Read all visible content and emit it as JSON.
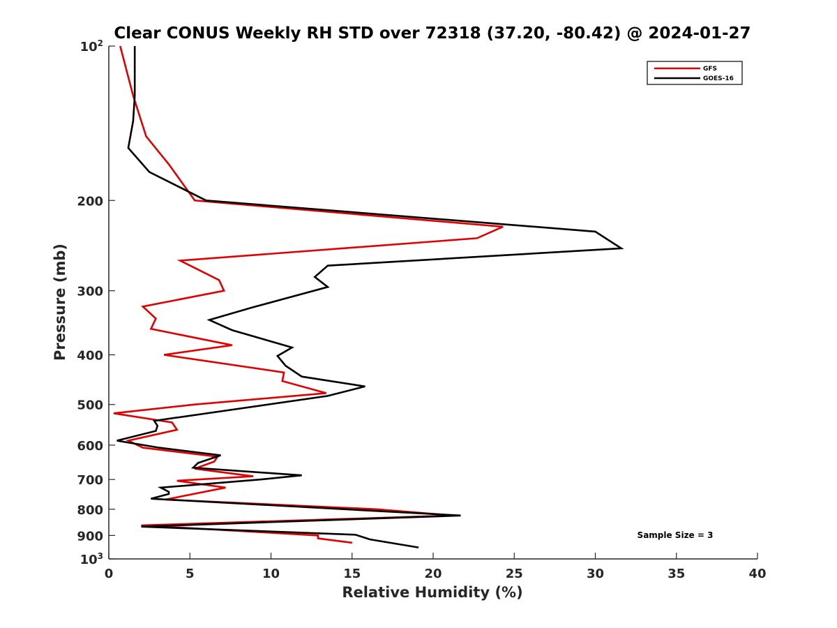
{
  "chart_data": {
    "type": "line",
    "title": "Clear CONUS Weekly RH STD over 72318 (37.20, -80.42) @ 2024-01-27",
    "xlabel": "Relative Humidity (%)",
    "ylabel": "Pressure (mb)",
    "xlim": [
      0,
      40
    ],
    "ylim": [
      100,
      1000
    ],
    "y_scale": "log",
    "y_reversed": true,
    "x_ticks": [
      "0",
      "5",
      "10",
      "15",
      "20",
      "25",
      "30",
      "35",
      "40"
    ],
    "y_ticks": [
      {
        "value": 100,
        "base": "10",
        "exp": "2"
      },
      {
        "value": 200,
        "base": "200",
        "exp": ""
      },
      {
        "value": 300,
        "base": "300",
        "exp": ""
      },
      {
        "value": 400,
        "base": "400",
        "exp": ""
      },
      {
        "value": 500,
        "base": "500",
        "exp": ""
      },
      {
        "value": 600,
        "base": "600",
        "exp": ""
      },
      {
        "value": 700,
        "base": "700",
        "exp": ""
      },
      {
        "value": 800,
        "base": "800",
        "exp": ""
      },
      {
        "value": 900,
        "base": "900",
        "exp": ""
      },
      {
        "value": 1000,
        "base": "10",
        "exp": "3"
      }
    ],
    "grid": false,
    "legend_position": "top-right",
    "annotation": "Sample Size = 3",
    "series": [
      {
        "name": "GFS",
        "color": "#e00000",
        "points": [
          [
            0.7,
            100
          ],
          [
            1.5,
            125
          ],
          [
            2.3,
            150
          ],
          [
            3.7,
            170
          ],
          [
            5.3,
            200
          ],
          [
            24.3,
            225
          ],
          [
            22.7,
            237
          ],
          [
            4.4,
            262
          ],
          [
            6.8,
            286
          ],
          [
            7.1,
            300
          ],
          [
            2.1,
            322
          ],
          [
            2.9,
            340
          ],
          [
            2.6,
            356
          ],
          [
            7.6,
            383
          ],
          [
            3.4,
            400
          ],
          [
            10.8,
            433
          ],
          [
            10.7,
            450
          ],
          [
            13.4,
            475
          ],
          [
            5.3,
            500
          ],
          [
            0.3,
            520
          ],
          [
            3.9,
            542
          ],
          [
            4.2,
            560
          ],
          [
            1.2,
            588
          ],
          [
            2.1,
            607
          ],
          [
            6.7,
            632
          ],
          [
            6.5,
            646
          ],
          [
            5.3,
            667
          ],
          [
            8.9,
            690
          ],
          [
            4.2,
            704
          ],
          [
            7.2,
            726
          ],
          [
            3.5,
            766
          ],
          [
            16.5,
            800
          ],
          [
            21.2,
            823
          ],
          [
            2.0,
            860
          ],
          [
            12.9,
            900
          ],
          [
            12.9,
            912
          ],
          [
            15.0,
            930
          ]
        ]
      },
      {
        "name": "GOES-16",
        "color": "#000000",
        "points": [
          [
            1.6,
            100
          ],
          [
            1.6,
            125
          ],
          [
            1.5,
            140
          ],
          [
            1.2,
            158
          ],
          [
            2.5,
            176
          ],
          [
            6.0,
            200
          ],
          [
            30.0,
            230
          ],
          [
            31.6,
            248
          ],
          [
            13.5,
            268
          ],
          [
            12.7,
            282
          ],
          [
            13.5,
            295
          ],
          [
            8.9,
            323
          ],
          [
            6.2,
            342
          ],
          [
            7.6,
            358
          ],
          [
            11.3,
            387
          ],
          [
            10.4,
            402
          ],
          [
            10.9,
            420
          ],
          [
            11.9,
            441
          ],
          [
            15.8,
            461
          ],
          [
            13.5,
            481
          ],
          [
            2.8,
            538
          ],
          [
            3.0,
            550
          ],
          [
            2.9,
            563
          ],
          [
            0.5,
            588
          ],
          [
            3.1,
            607
          ],
          [
            6.9,
            628
          ],
          [
            5.5,
            650
          ],
          [
            5.2,
            664
          ],
          [
            11.9,
            687
          ],
          [
            9.4,
            700
          ],
          [
            3.2,
            726
          ],
          [
            3.7,
            740
          ],
          [
            3.7,
            747
          ],
          [
            2.6,
            763
          ],
          [
            21.7,
            823
          ],
          [
            2.0,
            865
          ],
          [
            15.2,
            897
          ],
          [
            16.1,
            916
          ],
          [
            19.1,
            950
          ]
        ]
      }
    ]
  }
}
